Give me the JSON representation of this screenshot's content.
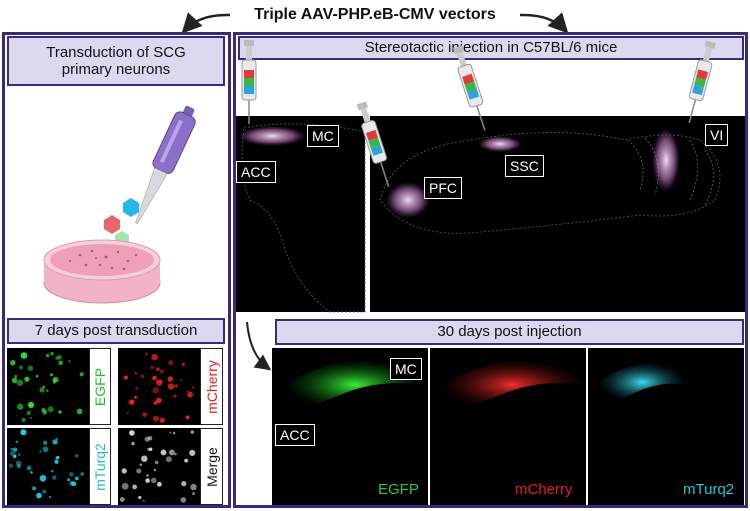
{
  "title": "Triple AAV-PHP.eB-CMV vectors",
  "left_panel": {
    "header": "Transduction of SCG primary neurons",
    "sub_header": "7 days post transduction",
    "channel_labels": [
      "EGFP",
      "mCherry",
      "mTurq2",
      "Merge"
    ]
  },
  "right_panel": {
    "header": "Stereotactic injection in C57BL/6 mice",
    "regions": [
      "MC",
      "ACC",
      "PFC",
      "SSC",
      "VI"
    ],
    "sub_header": "30 days post injection",
    "section_labels": [
      "MC",
      "ACC"
    ],
    "channel_labels": [
      "EGFP",
      "mCherry",
      "mTurq2"
    ]
  },
  "colors": {
    "frame": "#3b2a7a",
    "header_fill": "#dcd8f0",
    "egfp": "#2ecc2e",
    "mcherry": "#e02020",
    "mturq2": "#20c8d8",
    "injection": "#f0c0f0"
  }
}
